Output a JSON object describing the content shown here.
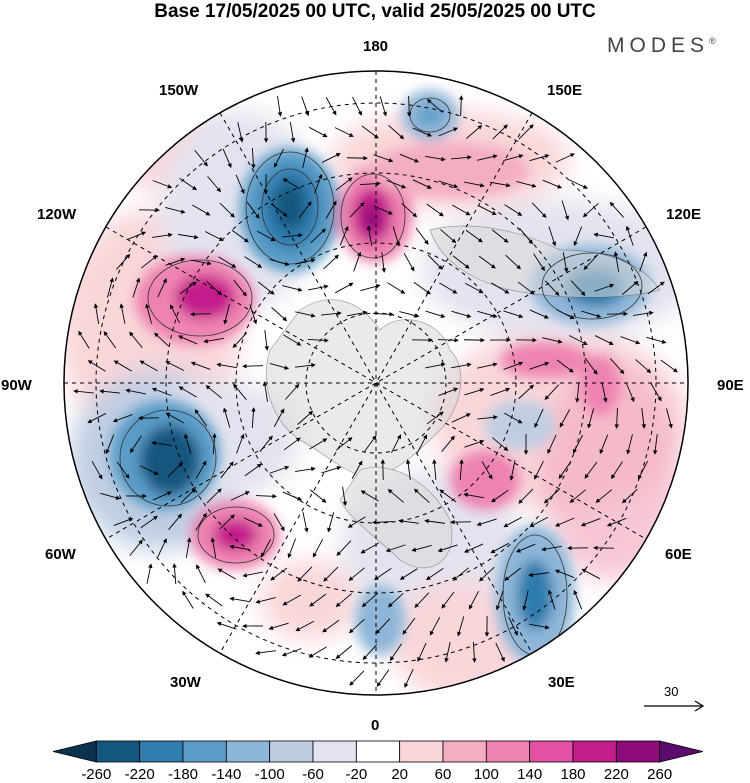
{
  "title": "Base 17/05/2025 00 UTC, valid 25/05/2025 00 UTC",
  "brand": {
    "name": "MODES",
    "mark": "®"
  },
  "longitude_labels": {
    "lon_180": "180",
    "lon_150e": "150E",
    "lon_120e": "120E",
    "lon_90e": "90E",
    "lon_60e": "60E",
    "lon_30e": "30E",
    "lon_0": "0",
    "lon_30w": "30W",
    "lon_60w": "60W",
    "lon_90w": "90W",
    "lon_120w": "120W",
    "lon_150w": "150W"
  },
  "colorbar": {
    "levels": [
      "-260",
      "-220",
      "-180",
      "-140",
      "-100",
      "-60",
      "-20",
      "20",
      "60",
      "100",
      "140",
      "180",
      "220",
      "260"
    ],
    "colors": [
      "#0b3350",
      "#14577e",
      "#2f7cad",
      "#5a9cc7",
      "#8eb6d8",
      "#bfcde3",
      "#e3e3ef",
      "#ffffff",
      "#f9d6d9",
      "#f4aec2",
      "#ee83b1",
      "#e251a2",
      "#c41d8c",
      "#8c0a79",
      "#5b0a6d"
    ]
  },
  "reference_vector": {
    "label": "30"
  },
  "icons": {
    "reference_arrow": "arrow-right-icon"
  }
}
